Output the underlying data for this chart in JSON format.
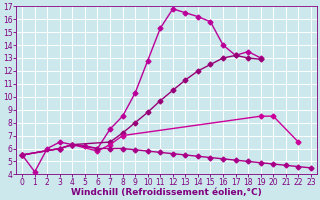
{
  "lines": [
    {
      "x": [
        0,
        1,
        2,
        3,
        4,
        5,
        6,
        7,
        8,
        9,
        10,
        11,
        12,
        13,
        14,
        15,
        16,
        17,
        18,
        19
      ],
      "y": [
        5.5,
        4.2,
        6.0,
        6.5,
        6.3,
        6.2,
        6.0,
        7.5,
        8.5,
        10.3,
        12.8,
        15.3,
        16.8,
        16.5,
        16.2,
        15.8,
        14.0,
        13.2,
        13.5,
        13.0
      ],
      "color": "#bb0099",
      "marker": "D",
      "markersize": 2.5,
      "linewidth": 1.0
    },
    {
      "x": [
        0,
        3,
        4,
        7,
        8,
        9,
        10,
        11,
        12,
        13,
        14,
        15,
        16,
        17,
        18,
        19
      ],
      "y": [
        5.5,
        6.0,
        6.3,
        6.5,
        7.2,
        8.0,
        8.8,
        9.7,
        10.5,
        11.3,
        12.0,
        12.5,
        13.0,
        13.2,
        13.0,
        12.9
      ],
      "color": "#990077",
      "marker": "D",
      "markersize": 2.5,
      "linewidth": 1.0
    },
    {
      "x": [
        0,
        3,
        4,
        6,
        7,
        8,
        19,
        20,
        22
      ],
      "y": [
        5.5,
        6.0,
        6.3,
        5.8,
        6.3,
        7.0,
        8.5,
        8.5,
        6.5
      ],
      "color": "#cc0099",
      "marker": "D",
      "markersize": 2.5,
      "linewidth": 1.0
    },
    {
      "x": [
        0,
        3,
        4,
        6,
        7,
        8,
        9,
        10,
        11,
        12,
        13,
        14,
        15,
        16,
        17,
        18,
        19,
        20,
        21,
        22,
        23
      ],
      "y": [
        5.5,
        6.0,
        6.3,
        6.0,
        6.0,
        6.0,
        5.9,
        5.8,
        5.7,
        5.6,
        5.5,
        5.4,
        5.3,
        5.2,
        5.1,
        5.0,
        4.9,
        4.8,
        4.7,
        4.6,
        4.5
      ],
      "color": "#aa0088",
      "marker": "D",
      "markersize": 2.5,
      "linewidth": 1.0
    }
  ],
  "xlim": [
    -0.5,
    23.5
  ],
  "ylim": [
    4,
    17
  ],
  "xticks": [
    0,
    1,
    2,
    3,
    4,
    5,
    6,
    7,
    8,
    9,
    10,
    11,
    12,
    13,
    14,
    15,
    16,
    17,
    18,
    19,
    20,
    21,
    22,
    23
  ],
  "yticks": [
    4,
    5,
    6,
    7,
    8,
    9,
    10,
    11,
    12,
    13,
    14,
    15,
    16,
    17
  ],
  "xlabel": "Windchill (Refroidissement éolien,°C)",
  "background_color": "#cce8ec",
  "grid_color": "#ffffff",
  "tick_color": "#800080",
  "label_color": "#800080",
  "tick_fontsize": 5.5,
  "xlabel_fontsize": 6.5
}
